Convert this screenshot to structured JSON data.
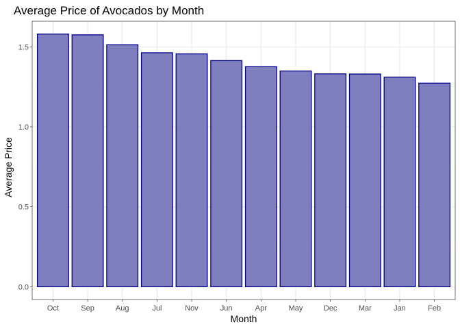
{
  "chart_data": {
    "type": "bar",
    "title": "Average Price of Avocados by Month",
    "xlabel": "Month",
    "ylabel": "Average Price",
    "categories": [
      "Oct",
      "Sep",
      "Aug",
      "Jul",
      "Nov",
      "Jun",
      "Apr",
      "May",
      "Dec",
      "Mar",
      "Jan",
      "Feb"
    ],
    "values": [
      1.58,
      1.575,
      1.513,
      1.463,
      1.456,
      1.414,
      1.376,
      1.349,
      1.331,
      1.33,
      1.311,
      1.273
    ],
    "ylim": [
      -0.08,
      1.66
    ],
    "yticks": [
      0.0,
      0.5,
      1.0,
      1.5
    ],
    "ytick_labels": [
      "0.0",
      "0.5",
      "1.0",
      "1.5"
    ],
    "grid": true,
    "legend": "none",
    "colors": {
      "bar_fill": "#7f7fbf",
      "bar_stroke": "#00008b",
      "grid_major": "#ebebeb",
      "grid_minor": "#f5f5f5",
      "panel_border": "#333333"
    }
  }
}
